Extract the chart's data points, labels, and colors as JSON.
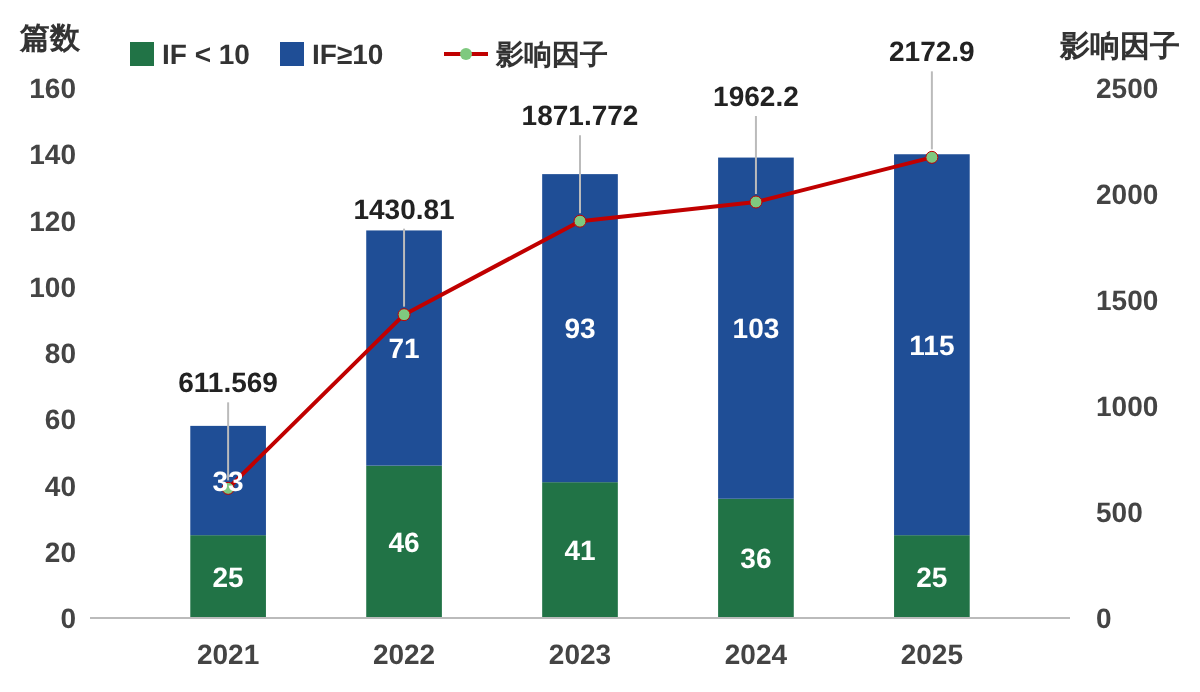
{
  "chart_data": {
    "type": "bar",
    "stacked": true,
    "categories": [
      "2021",
      "2022",
      "2023",
      "2024",
      "2025"
    ],
    "series": [
      {
        "name": "IF < 10",
        "color": "#217346",
        "values": [
          25,
          46,
          41,
          36,
          25
        ]
      },
      {
        "name": "IF≥10",
        "color": "#1f4e96",
        "values": [
          33,
          71,
          93,
          103,
          115
        ]
      },
      {
        "name": "影响因子",
        "type": "line",
        "axis": "y2",
        "color": "#c00000",
        "marker": "circle",
        "values": [
          611.569,
          1430.81,
          1871.772,
          1962.2,
          2172.9
        ]
      }
    ],
    "ylabel": "篇数",
    "y2label": "影响因子",
    "ylim": [
      0,
      160
    ],
    "yticks": [
      0,
      20,
      40,
      60,
      80,
      100,
      120,
      140,
      160
    ],
    "y2lim": [
      0,
      2500
    ],
    "y2ticks": [
      0,
      500,
      1000,
      1500,
      2000,
      2500
    ],
    "data_labels": true,
    "legend": "top",
    "grid": false
  }
}
